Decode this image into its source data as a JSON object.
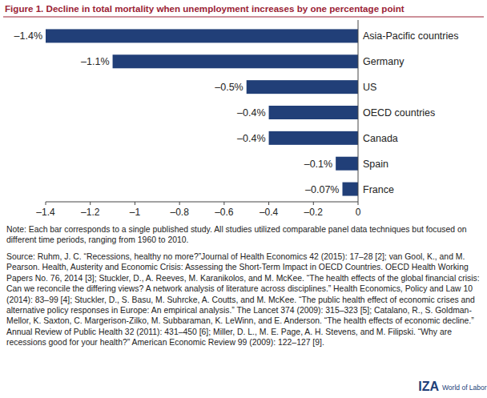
{
  "chart_data": {
    "type": "bar",
    "orientation": "horizontal",
    "title": "Figure 1. Decline in total mortality when unemployment increases by one percentage point",
    "categories": [
      "Asia-Pacific countries",
      "Germany",
      "US",
      "OECD countries",
      "Canada",
      "Spain",
      "France"
    ],
    "values": [
      -1.4,
      -1.1,
      -0.5,
      -0.4,
      -0.4,
      -0.1,
      -0.07
    ],
    "value_labels": [
      "–1.4%",
      "–1.1%",
      "–0.5%",
      "–0.4%",
      "–0.4%",
      "–0.1%",
      "–0.07%"
    ],
    "data_labels": true,
    "color": "#213f78",
    "grid": false,
    "xlim": [
      -1.4,
      0
    ],
    "xticks": [
      {
        "value": -1.4,
        "label": "–1.4"
      },
      {
        "value": -1.2,
        "label": "–1.2"
      },
      {
        "value": -1,
        "label": "–1"
      },
      {
        "value": -0.8,
        "label": "–0.8"
      },
      {
        "value": -0.6,
        "label": "–0.6"
      },
      {
        "value": -0.4,
        "label": "–0.4"
      },
      {
        "value": -0.2,
        "label": "–0.2"
      },
      0
    ],
    "annotations": [
      "Note: Each bar corresponds to a single published study. All studies utilized comparable panel data techniques but focused on different time periods, ranging from 1960 to 2010.",
      "Source: Ruhm, J. C. “Recessions, healthy no more?”Journal of Health Economics 42 (2015): 17–28 [2]; van Gool, K., and M. Pearson. Health, Austerity and Economic Crisis: Assessing the Short-Term Impact in OECD Countries. OECD Health Working Papers No. 76, 2014 [3]; Stuckler, D., A. Reeves, M. Karanikolos, and M. McKee. “The health effects of the global financial crisis: Can we reconcile the differing views? A network analysis of literature across disciplines.” Health Economics, Policy and Law 10 (2014): 83–99 [4]; Stuckler, D., S. Basu, M. Suhrcke, A. Coutts, and M. McKee. “The public health effect of economic crises and alternative policy responses in Europe: An empirical analysis.” The Lancet 374 (2009): 315–323 [5]; Catalano, R., S. Goldman-Mellor, K. Saxton, C. Margerison-Zilko, M. Subbaraman, K. LeWinn, and E. Anderson. “The health effects of economic decline.” Annual Review of Public Health 32 (2011): 431–450 [6]; Miller, D. L., M. E. Page, A. H. Stevens, and M. Filipski. “Why are recessions good for your health?” American Economic Review 99 (2009): 122–127 [9].",
      "IZA",
      "World of Labor"
    ]
  }
}
